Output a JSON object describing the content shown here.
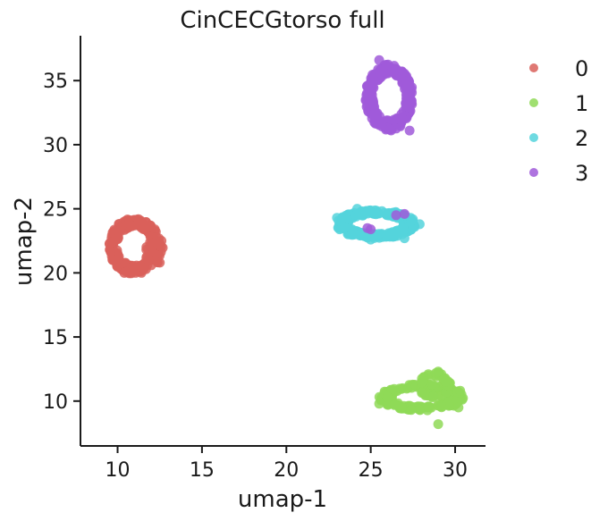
{
  "chart_data": {
    "type": "scatter",
    "title": "CinCECGtorso full",
    "xlabel": "umap-1",
    "ylabel": "umap-2",
    "xlim": [
      7.8,
      31.8
    ],
    "ylim": [
      6.5,
      38.5
    ],
    "xticks": [
      10,
      15,
      20,
      25,
      30
    ],
    "yticks": [
      10,
      15,
      20,
      25,
      30,
      35
    ],
    "grid": false,
    "legend_position": "right",
    "series": [
      {
        "name": "0",
        "color": "#d9605a",
        "clusters": [
          {
            "cx": 11.0,
            "cy": 22.1,
            "rx": 1.45,
            "ry": 2.1,
            "n": 240,
            "ring": true
          },
          {
            "cx": 12.2,
            "cy": 21.6,
            "rx": 0.6,
            "ry": 0.9,
            "n": 30,
            "ring": false
          }
        ],
        "points": [
          [
            12.6,
            22.5
          ],
          [
            12.5,
            20.8
          ],
          [
            9.7,
            21.0
          ],
          [
            10.4,
            20.0
          ]
        ]
      },
      {
        "name": "1",
        "color": "#8fd957",
        "clusters": [
          {
            "cx": 28.0,
            "cy": 10.3,
            "rx": 2.4,
            "ry": 1.0,
            "n": 200,
            "ring": true
          },
          {
            "cx": 28.8,
            "cy": 11.2,
            "rx": 0.9,
            "ry": 1.0,
            "n": 60,
            "ring": true
          }
        ],
        "points": [
          [
            26.0,
            10.3
          ],
          [
            25.5,
            9.8
          ],
          [
            29.0,
            8.2
          ],
          [
            29.0,
            12.3
          ],
          [
            30.3,
            10.8
          ],
          [
            30.2,
            9.5
          ]
        ]
      },
      {
        "name": "2",
        "color": "#55d3dc",
        "clusters": [
          {
            "cx": 25.3,
            "cy": 23.8,
            "rx": 2.3,
            "ry": 1.05,
            "n": 280,
            "ring": true
          }
        ],
        "points": [
          [
            23.0,
            24.3
          ],
          [
            27.9,
            23.8
          ],
          [
            24.2,
            25.0
          ],
          [
            27.0,
            22.7
          ],
          [
            25.0,
            22.6
          ]
        ]
      },
      {
        "name": "3",
        "color": "#a05ad9",
        "clusters": [
          {
            "cx": 26.1,
            "cy": 33.7,
            "rx": 1.35,
            "ry": 2.5,
            "n": 260,
            "ring": true
          }
        ],
        "points": [
          [
            25.0,
            34.1
          ],
          [
            24.8,
            23.5
          ],
          [
            25.0,
            23.4
          ],
          [
            26.5,
            24.5
          ],
          [
            27.0,
            24.6
          ],
          [
            25.5,
            36.6
          ],
          [
            27.3,
            31.1
          ]
        ]
      }
    ]
  }
}
